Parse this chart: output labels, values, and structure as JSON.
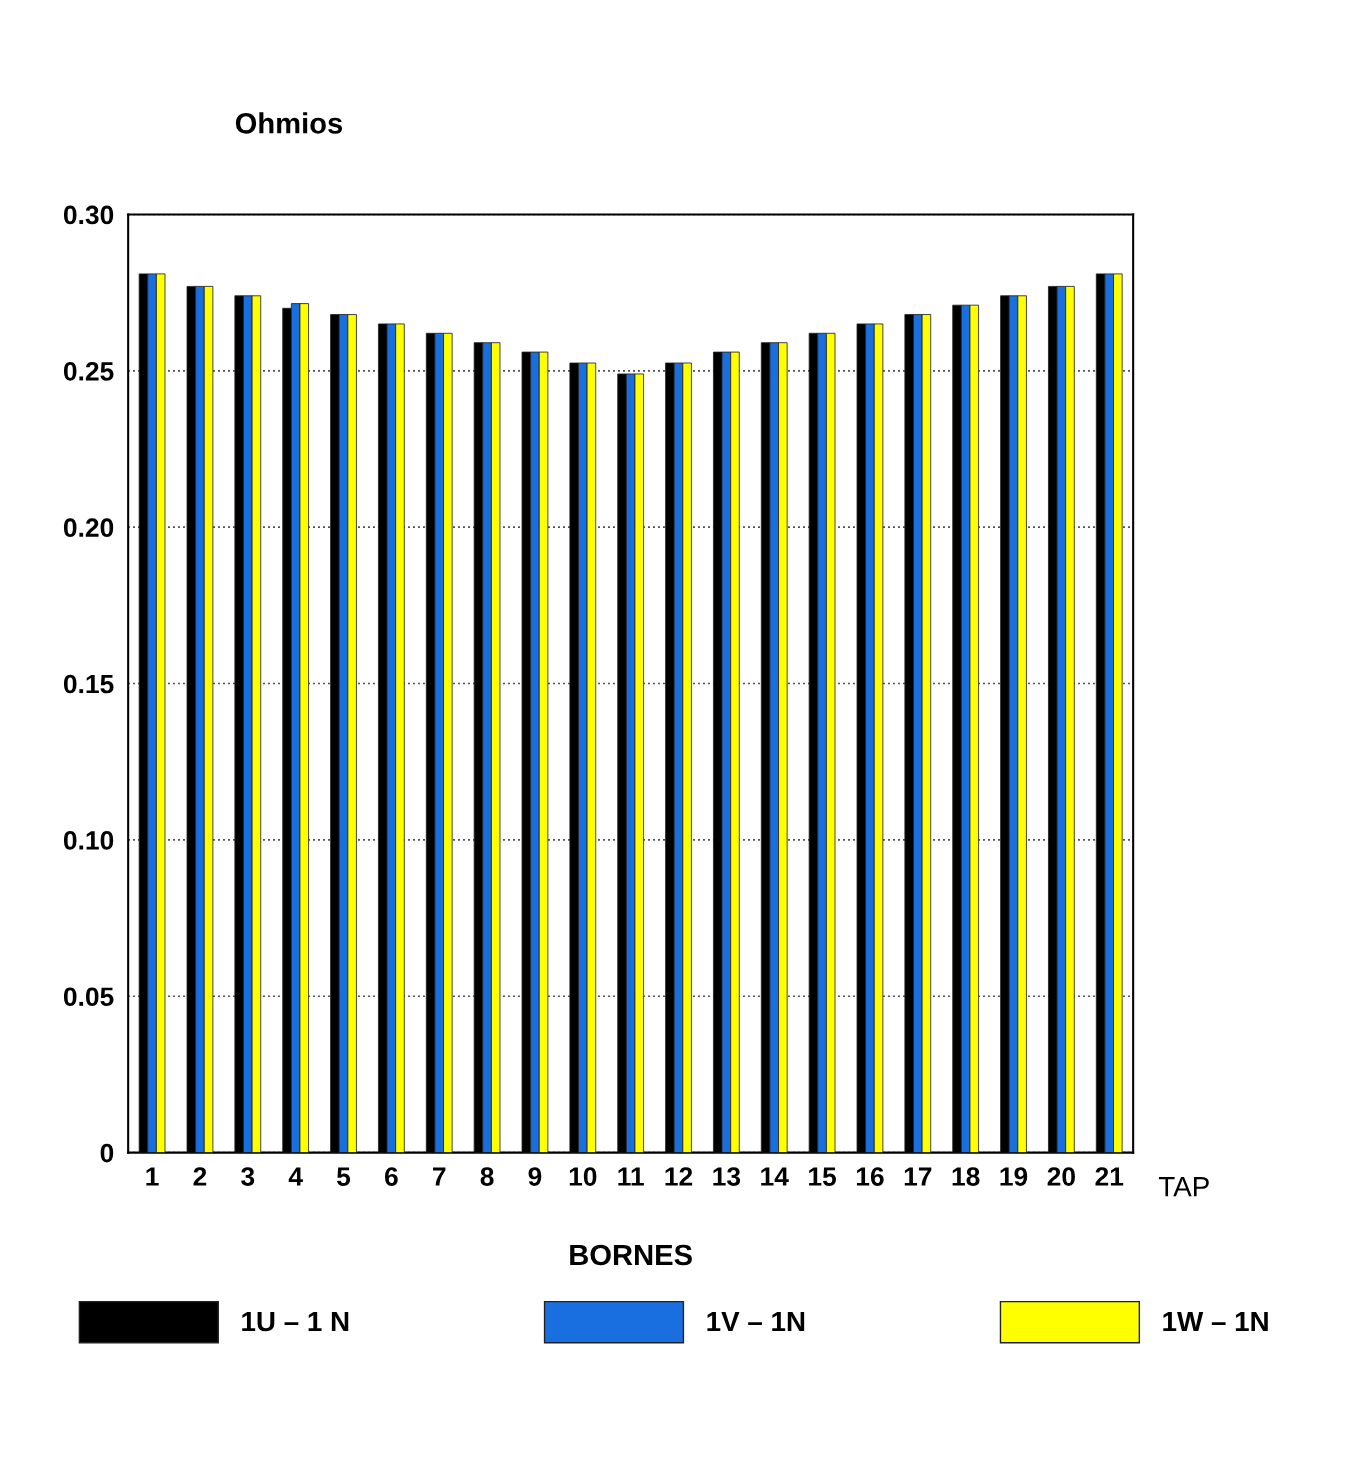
{
  "chart_data": {
    "type": "bar",
    "ylabel": "Ohmios",
    "xlabel": "BORNES",
    "annotations": [
      "TAP"
    ],
    "categories": [
      "1",
      "2",
      "3",
      "4",
      "5",
      "6",
      "7",
      "8",
      "9",
      "10",
      "11",
      "12",
      "13",
      "14",
      "15",
      "16",
      "17",
      "18",
      "19",
      "20",
      "21"
    ],
    "series": [
      {
        "name": "1U – 1 N",
        "color": "#000000",
        "values": [
          0.281,
          0.277,
          0.274,
          0.27,
          0.268,
          0.265,
          0.262,
          0.259,
          0.256,
          0.2525,
          0.249,
          0.2525,
          0.256,
          0.259,
          0.262,
          0.265,
          0.268,
          0.271,
          0.274,
          0.277,
          0.281
        ]
      },
      {
        "name": "1V – 1N",
        "color": "#1a6fe0",
        "values": [
          0.281,
          0.277,
          0.274,
          0.2715,
          0.268,
          0.265,
          0.262,
          0.259,
          0.256,
          0.2525,
          0.249,
          0.2525,
          0.256,
          0.259,
          0.262,
          0.265,
          0.268,
          0.271,
          0.274,
          0.277,
          0.281
        ]
      },
      {
        "name": "1W – 1N",
        "color": "#ffff00",
        "values": [
          0.281,
          0.277,
          0.274,
          0.2715,
          0.268,
          0.265,
          0.262,
          0.259,
          0.256,
          0.2525,
          0.249,
          0.2525,
          0.256,
          0.259,
          0.262,
          0.265,
          0.268,
          0.271,
          0.274,
          0.277,
          0.281
        ]
      }
    ],
    "ylim": [
      0,
      0.3
    ],
    "yticks": [
      {
        "value": 0,
        "label": "0"
      },
      0.05,
      {
        "value": 0.1,
        "label": "0.10"
      },
      0.15,
      {
        "value": 0.2,
        "label": "0.20"
      },
      0.25,
      {
        "value": 0.3,
        "label": "0.30"
      }
    ],
    "grid": "y",
    "legend": "bottom"
  }
}
